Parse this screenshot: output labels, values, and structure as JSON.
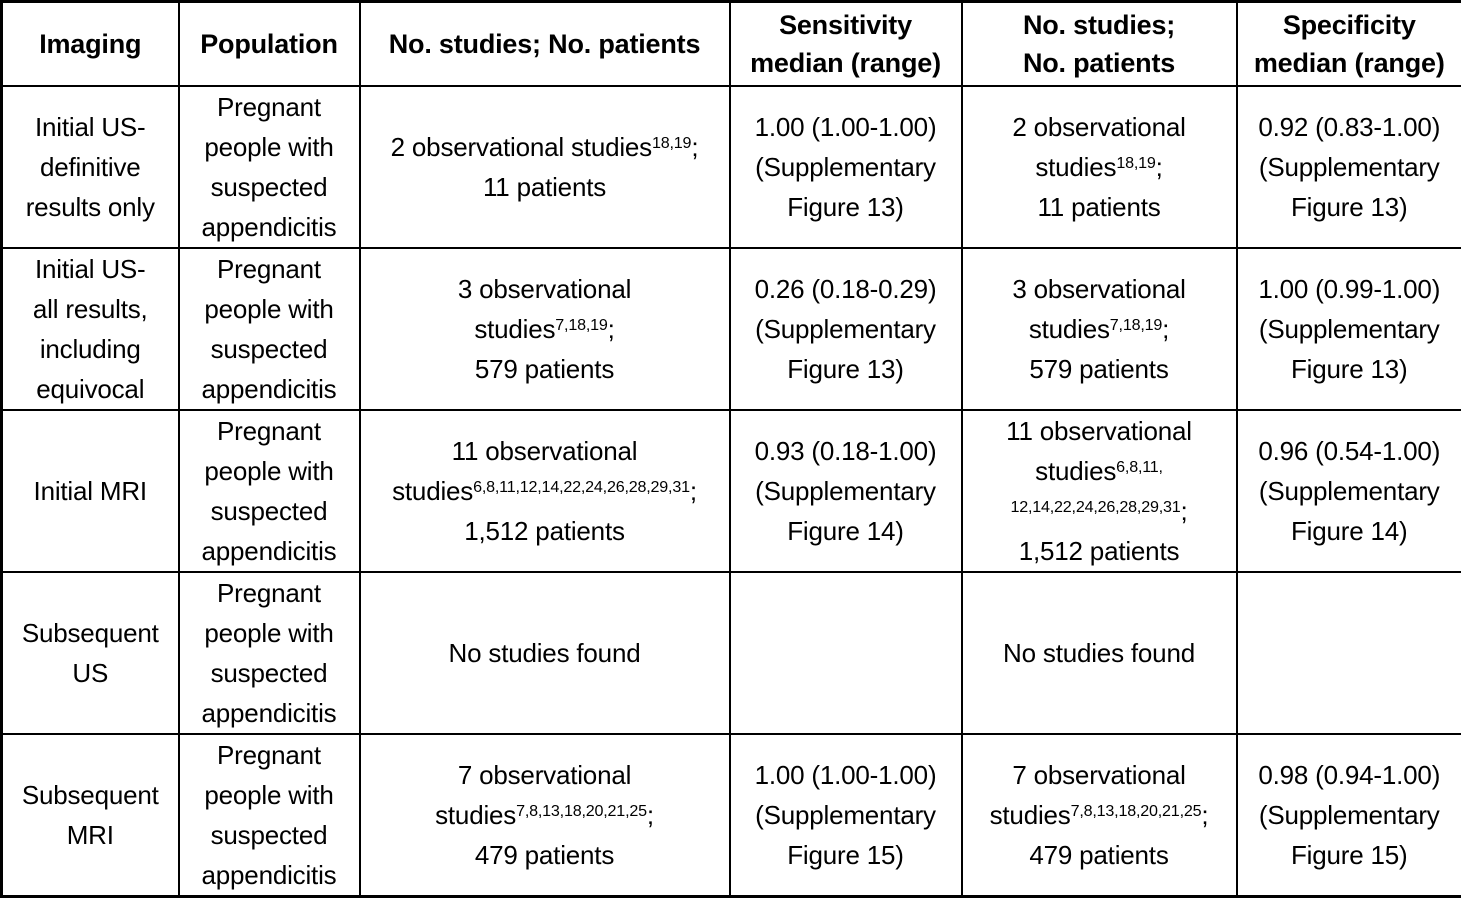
{
  "colors": {
    "background": "#ffffff",
    "border": "#000000",
    "text": "#000000"
  },
  "table": {
    "headers": [
      {
        "id": "imaging",
        "lines": [
          [
            "Imaging"
          ]
        ]
      },
      {
        "id": "population",
        "lines": [
          [
            "Population"
          ]
        ]
      },
      {
        "id": "studies-sensitivity",
        "lines": [
          [
            "No. studies; No. patients"
          ]
        ]
      },
      {
        "id": "sensitivity",
        "lines": [
          [
            "Sensitivity"
          ],
          [
            "median (range)"
          ]
        ]
      },
      {
        "id": "studies-specificity",
        "lines": [
          [
            "No. studies;"
          ],
          [
            "No. patients"
          ]
        ]
      },
      {
        "id": "specificity",
        "lines": [
          [
            "Specificity"
          ],
          [
            "median (range)"
          ]
        ]
      }
    ],
    "rows": [
      {
        "imaging": [
          [
            "Initial US-"
          ],
          [
            "definitive"
          ],
          [
            "results only"
          ]
        ],
        "population": [
          [
            "Pregnant"
          ],
          [
            "people with"
          ],
          [
            "suspected"
          ],
          [
            "appendicitis"
          ]
        ],
        "studies_sensitivity": [
          [
            "2 observational studies",
            {
              "sup": "18,19"
            },
            ";"
          ],
          [
            "11 patients"
          ]
        ],
        "sensitivity": [
          [
            "1.00 (1.00-1.00)"
          ],
          [
            "(Supplementary"
          ],
          [
            "Figure 13)"
          ]
        ],
        "studies_specificity": [
          [
            "2 observational"
          ],
          [
            "studies",
            {
              "sup": "18,19"
            },
            ";"
          ],
          [
            "11 patients"
          ]
        ],
        "specificity": [
          [
            "0.92 (0.83-1.00)"
          ],
          [
            "(Supplementary"
          ],
          [
            "Figure 13)"
          ]
        ]
      },
      {
        "imaging": [
          [
            "Initial US-"
          ],
          [
            "all results,"
          ],
          [
            "including"
          ],
          [
            "equivocal"
          ]
        ],
        "population": [
          [
            "Pregnant"
          ],
          [
            "people with"
          ],
          [
            "suspected"
          ],
          [
            "appendicitis"
          ]
        ],
        "studies_sensitivity": [
          [
            "3 observational"
          ],
          [
            "studies",
            {
              "sup": "7,18,19"
            },
            ";"
          ],
          [
            "579 patients"
          ]
        ],
        "sensitivity": [
          [
            "0.26 (0.18-0.29)"
          ],
          [
            "(Supplementary"
          ],
          [
            "Figure 13)"
          ]
        ],
        "studies_specificity": [
          [
            "3 observational"
          ],
          [
            "studies",
            {
              "sup": "7,18,19"
            },
            ";"
          ],
          [
            "579 patients"
          ]
        ],
        "specificity": [
          [
            "1.00 (0.99-1.00)"
          ],
          [
            "(Supplementary"
          ],
          [
            "Figure 13)"
          ]
        ]
      },
      {
        "imaging": [
          [
            "Initial MRI"
          ]
        ],
        "population": [
          [
            "Pregnant"
          ],
          [
            "people with"
          ],
          [
            "suspected"
          ],
          [
            "appendicitis"
          ]
        ],
        "studies_sensitivity": [
          [
            "11 observational"
          ],
          [
            "studies",
            {
              "sup": "6,8,11,12,14,22,24,26,28,29,31"
            },
            ";"
          ],
          [
            "1,512 patients"
          ]
        ],
        "sensitivity": [
          [
            "0.93 (0.18-1.00)"
          ],
          [
            "(Supplementary"
          ],
          [
            "Figure 14)"
          ]
        ],
        "studies_specificity": [
          [
            "11 observational"
          ],
          [
            "studies",
            {
              "sup": "6,8,11,"
            }
          ],
          [
            {
              "sup": "12,14,22,24,26,28,29,31"
            },
            ";"
          ],
          [
            "1,512 patients"
          ]
        ],
        "specificity": [
          [
            "0.96 (0.54-1.00)"
          ],
          [
            "(Supplementary"
          ],
          [
            "Figure 14)"
          ]
        ]
      },
      {
        "imaging": [
          [
            "Subsequent"
          ],
          [
            "US"
          ]
        ],
        "population": [
          [
            "Pregnant"
          ],
          [
            "people with"
          ],
          [
            "suspected"
          ],
          [
            "appendicitis"
          ]
        ],
        "studies_sensitivity": [
          [
            "No studies found"
          ]
        ],
        "sensitivity": [],
        "studies_specificity": [
          [
            "No studies found"
          ]
        ],
        "specificity": []
      },
      {
        "imaging": [
          [
            "Subsequent"
          ],
          [
            "MRI"
          ]
        ],
        "population": [
          [
            "Pregnant"
          ],
          [
            "people with"
          ],
          [
            "suspected"
          ],
          [
            "appendicitis"
          ]
        ],
        "studies_sensitivity": [
          [
            "7 observational"
          ],
          [
            "studies",
            {
              "sup": "7,8,13,18,20,21,25"
            },
            ";"
          ],
          [
            "479 patients"
          ]
        ],
        "sensitivity": [
          [
            "1.00 (1.00-1.00)"
          ],
          [
            "(Supplementary"
          ],
          [
            "Figure 15)"
          ]
        ],
        "studies_specificity": [
          [
            "7 observational"
          ],
          [
            "studies",
            {
              "sup": "7,8,13,18,20,21,25"
            },
            ";"
          ],
          [
            "479 patients"
          ]
        ],
        "specificity": [
          [
            "0.98 (0.94-1.00)"
          ],
          [
            "(Supplementary"
          ],
          [
            "Figure 15)"
          ]
        ]
      }
    ]
  }
}
